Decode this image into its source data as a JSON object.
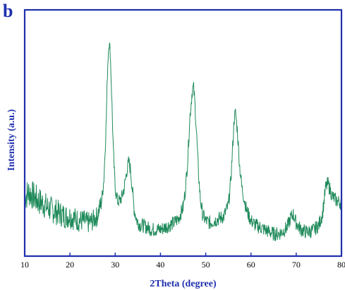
{
  "panel_label": "b",
  "chart_data": {
    "type": "line",
    "title": "",
    "xlabel": "2Theta (degree)",
    "ylabel": "Intensity (a.u.)",
    "xlim": [
      10,
      80
    ],
    "ylim": [
      0,
      100
    ],
    "y_ticks_shown": false,
    "grid": false,
    "legend": "none",
    "x_ticks": [
      10,
      20,
      30,
      40,
      50,
      60,
      70,
      80
    ],
    "colors": {
      "trace": "#1f8a5a",
      "frame": "#1f2fae"
    },
    "series": [
      {
        "x": [
          10,
          11,
          12,
          13,
          14,
          15,
          16,
          17,
          18,
          19,
          20,
          21,
          22,
          23,
          24,
          25,
          26,
          27,
          27.5,
          28,
          28.3,
          28.6,
          28.9,
          29.2,
          29.6,
          30,
          30.5,
          31,
          31.5,
          32,
          32.5,
          33,
          33.4,
          33.8,
          34.2,
          34.8,
          35.5,
          36,
          37,
          38,
          39,
          40,
          41,
          42,
          43,
          44,
          45,
          45.5,
          46,
          46.5,
          47,
          47.3,
          47.6,
          48,
          48.4,
          48.8,
          49.3,
          50,
          51,
          52,
          53,
          54,
          55,
          55.5,
          56,
          56.3,
          56.6,
          57,
          57.5,
          58,
          59,
          60,
          61,
          62,
          63,
          64,
          65,
          66,
          67,
          68,
          68.7,
          69.3,
          70,
          71,
          72,
          73,
          74,
          75,
          75.8,
          76.5,
          77,
          78,
          79,
          80
        ],
        "y": [
          22,
          24,
          22,
          20,
          19,
          17,
          16,
          15,
          14,
          13,
          13,
          12,
          11,
          11,
          10,
          11,
          13,
          20,
          30,
          55,
          80,
          93,
          88,
          70,
          42,
          26,
          20,
          20,
          22,
          26,
          33,
          38,
          34,
          25,
          16,
          11,
          9,
          9,
          8,
          7,
          7,
          7,
          8,
          9,
          10,
          12,
          17,
          25,
          38,
          58,
          70,
          72,
          65,
          50,
          33,
          21,
          14,
          11,
          10,
          11,
          12,
          13,
          18,
          28,
          46,
          58,
          60,
          52,
          36,
          26,
          16,
          11,
          9,
          8,
          7,
          6,
          5,
          5,
          6,
          8,
          12,
          14,
          10,
          7,
          6,
          6,
          7,
          9,
          14,
          26,
          28,
          22,
          20,
          19
        ]
      }
    ]
  }
}
